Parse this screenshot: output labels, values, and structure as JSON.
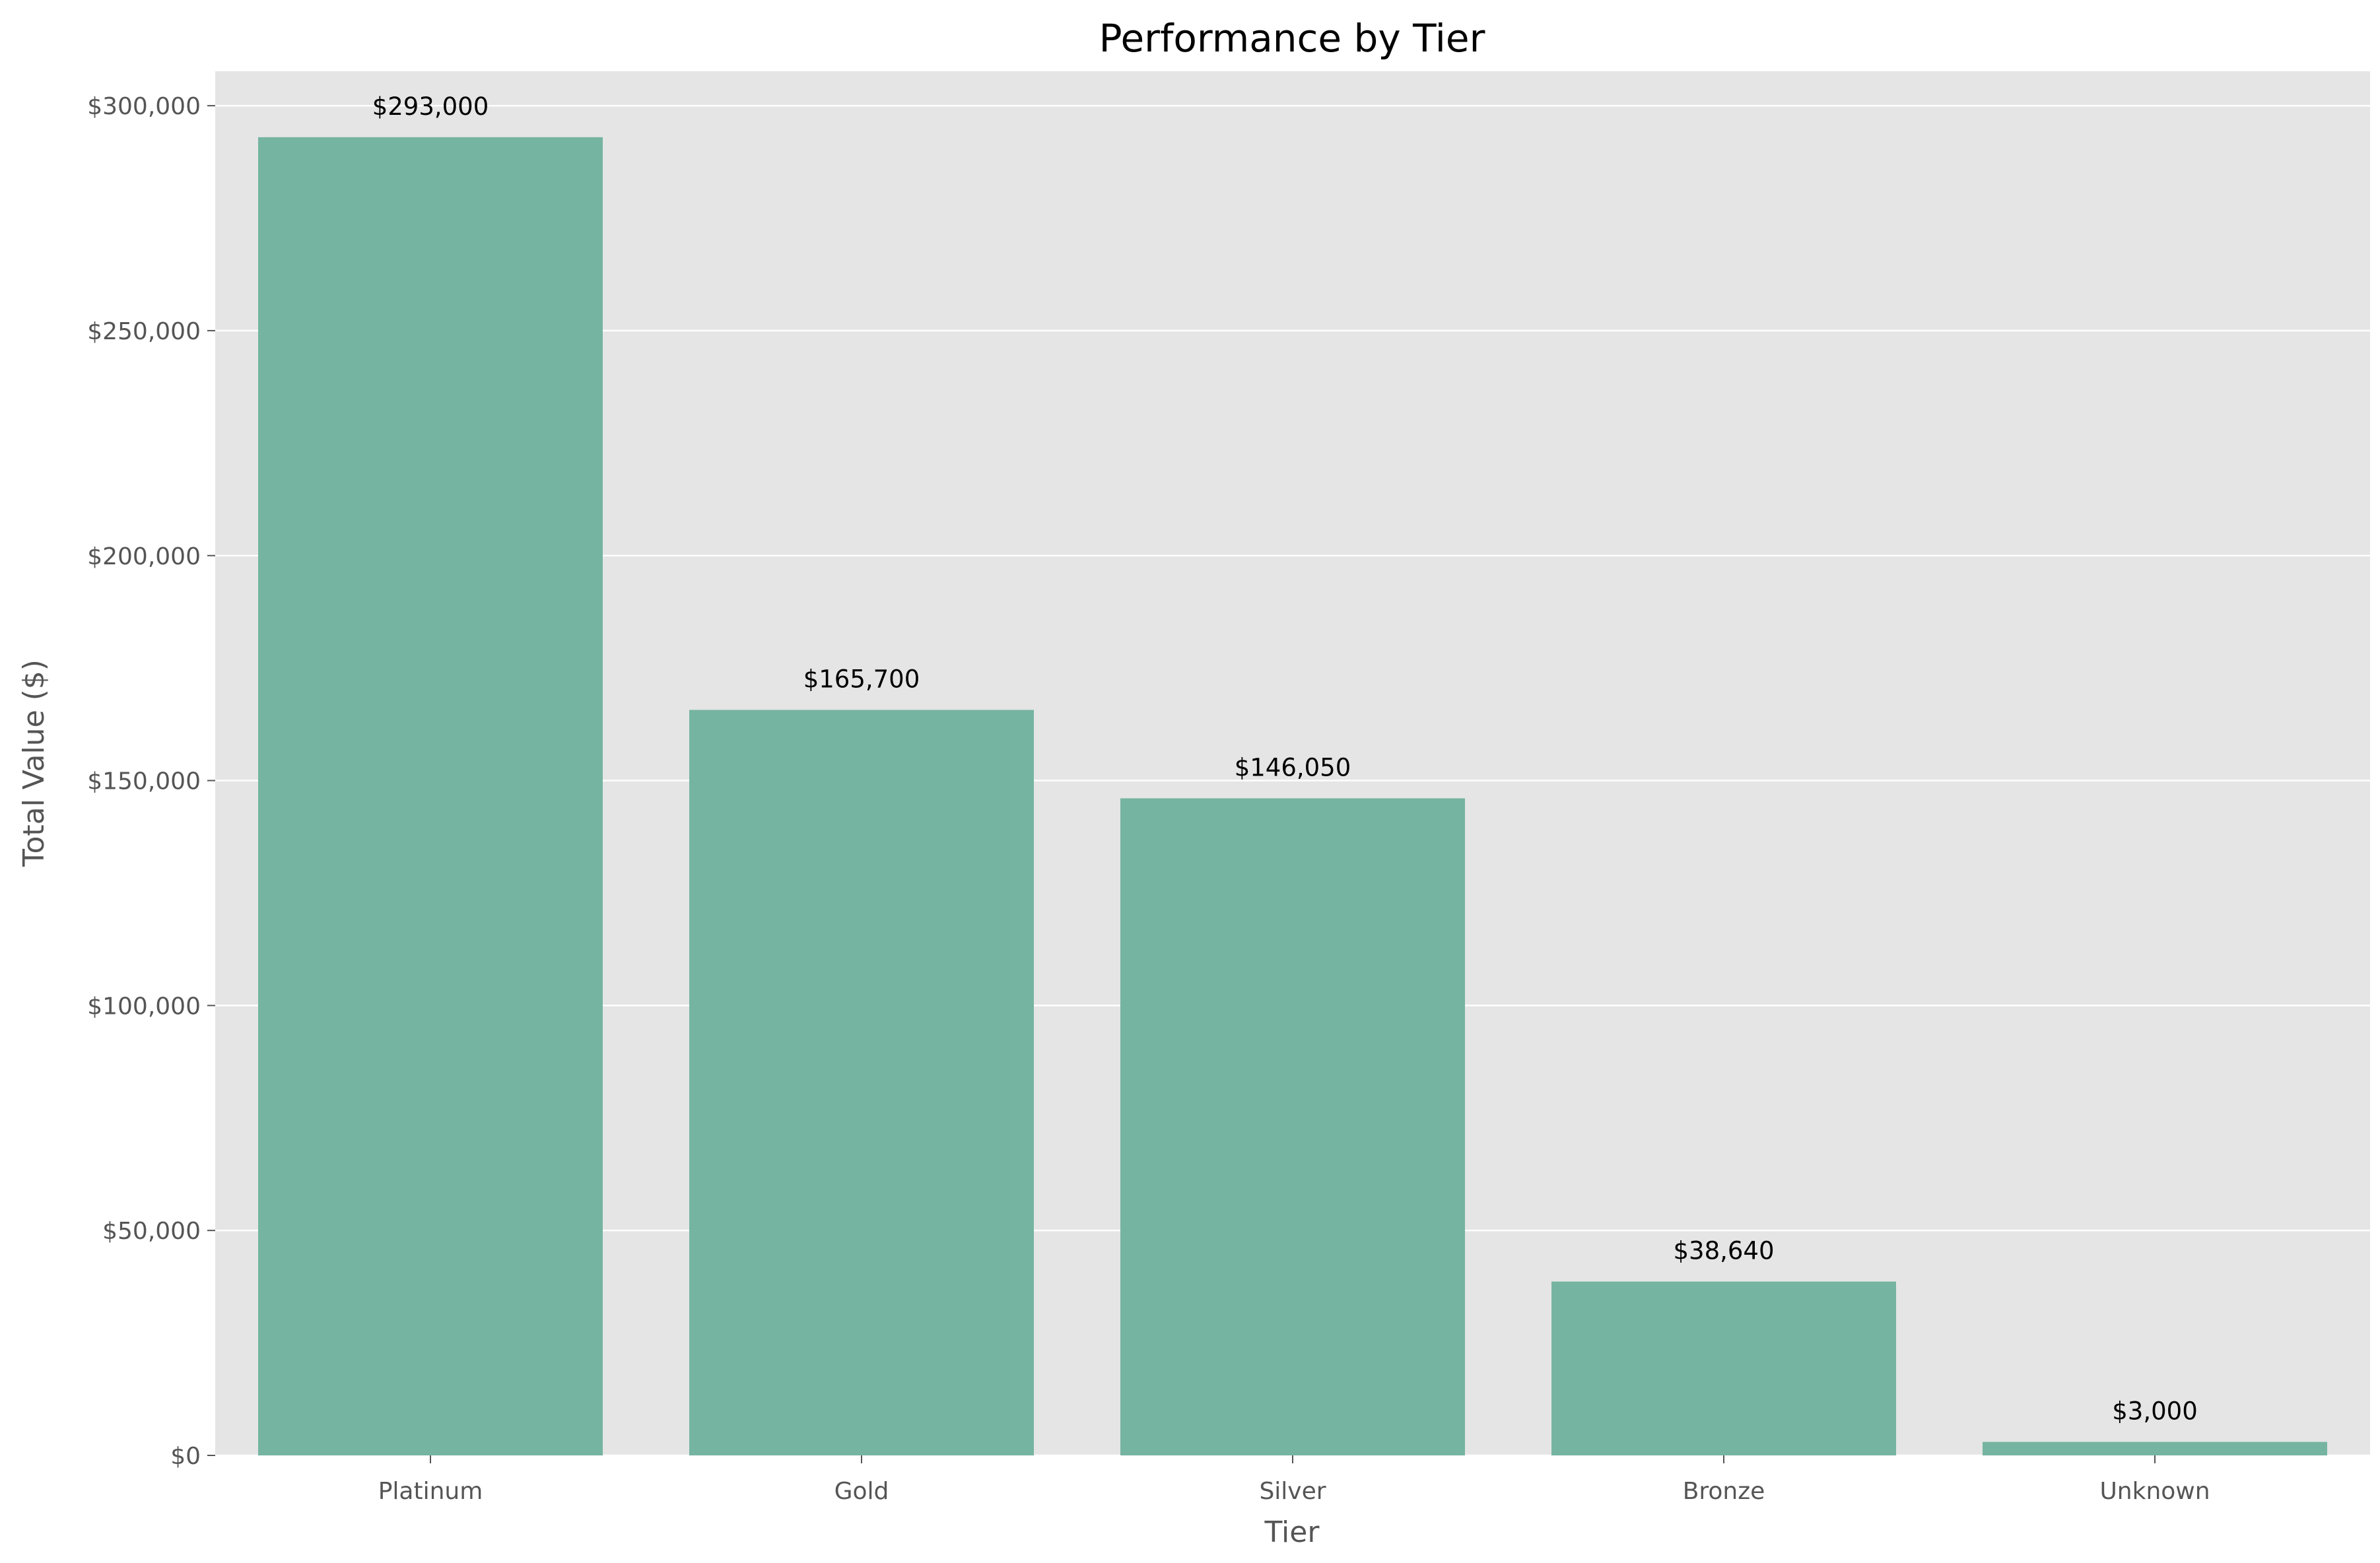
{
  "chart_data": {
    "type": "bar",
    "title": "Performance by Tier",
    "xlabel": "Tier",
    "ylabel": "Total Value ($)",
    "categories": [
      "Platinum",
      "Gold",
      "Silver",
      "Bronze",
      "Unknown"
    ],
    "values": [
      293000,
      165700,
      146050,
      38640,
      3000
    ],
    "data_labels": [
      "$293,000",
      "$165,700",
      "$146,050",
      "$38,640",
      "$3,000"
    ],
    "yticks": [
      0,
      50000,
      100000,
      150000,
      200000,
      250000,
      300000
    ],
    "ytick_labels": [
      "$0",
      "$50,000",
      "$100,000",
      "$150,000",
      "$200,000",
      "$250,000",
      "$300,000"
    ],
    "ylim": [
      0,
      307650
    ],
    "grid": true,
    "colors": {
      "bar": "#75b4a0",
      "plot_background": "#e5e5e5",
      "grid": "#ffffff"
    }
  }
}
